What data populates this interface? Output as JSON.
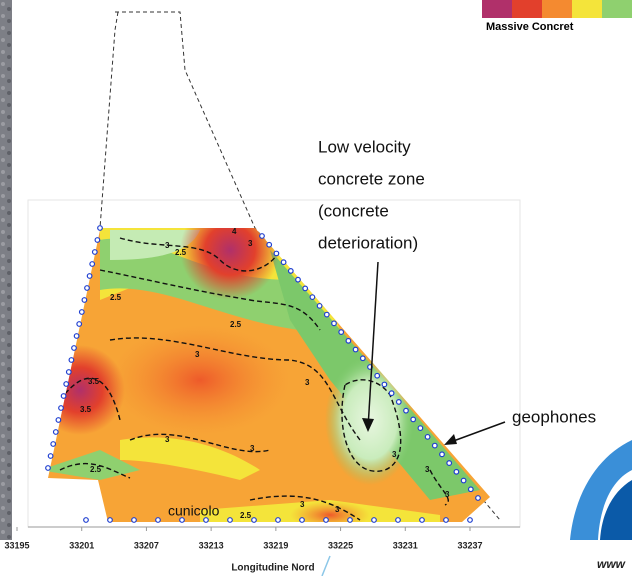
{
  "legend_caption": "Massive Concret",
  "annotation": {
    "lines": [
      "Low velocity",
      "concrete zone",
      "(concrete",
      "deterioration)"
    ]
  },
  "geophones_label": "geophones",
  "tunnel_label": "cunicolo",
  "watermark": "www",
  "axis": {
    "label": "Longitudine Nord",
    "ticks": [
      33195,
      33201,
      33207,
      33213,
      33219,
      33225,
      33231,
      33237
    ]
  },
  "contour_labels": [
    "4",
    "3",
    "3",
    "2.5",
    "2.5",
    "2.5",
    "3",
    "3",
    "3.5",
    "3.5",
    "3",
    "3",
    "2.5",
    "3",
    "3",
    "3",
    "2.5",
    "3",
    "3"
  ]
}
